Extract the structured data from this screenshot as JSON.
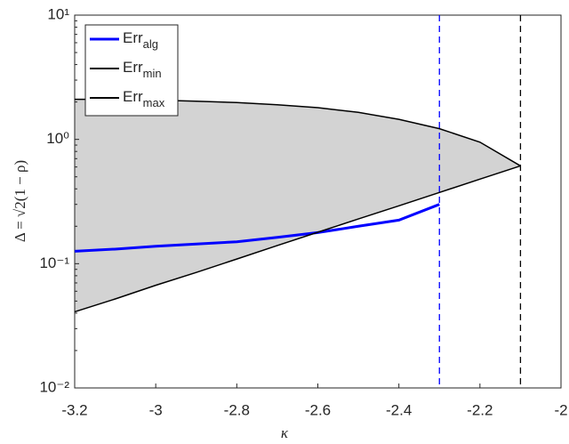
{
  "chart_data": {
    "type": "line",
    "log_y": true,
    "x_label": "κ",
    "y_label": "Δ = √2(1 − ρ)",
    "x": [
      -3.2,
      -3.1,
      -3.0,
      -2.9,
      -2.8,
      -2.7,
      -2.6,
      -2.5,
      -2.4,
      -2.3,
      -2.2,
      -2.1
    ],
    "series": [
      {
        "name": "Err",
        "subscript": "alg",
        "color": "#0000ff",
        "values": [
          0.126,
          0.131,
          0.138,
          0.144,
          0.15,
          0.163,
          0.178,
          0.2,
          0.224,
          0.3,
          null,
          null
        ]
      },
      {
        "name": "Err",
        "subscript": "min",
        "color": "#000000",
        "values": [
          0.041,
          0.052,
          0.067,
          0.085,
          0.109,
          0.14,
          0.179,
          0.229,
          0.292,
          0.374,
          0.479,
          0.612
        ]
      },
      {
        "name": "Err",
        "subscript": "max",
        "color": "#000000",
        "values": [
          2.1,
          2.1,
          2.07,
          2.03,
          1.98,
          1.9,
          1.8,
          1.65,
          1.45,
          1.22,
          0.95,
          0.612
        ]
      }
    ],
    "band_color": "#d3d3d3",
    "vlines": [
      {
        "x": -2.3,
        "color": "#0000ff"
      },
      {
        "x": -2.1,
        "color": "#000000"
      }
    ],
    "xlim": [
      -3.2,
      -2.0
    ],
    "xticks": [
      -3.2,
      -3,
      -2.8,
      -2.6,
      -2.4,
      -2.2,
      -2
    ],
    "ylim": [
      0.01,
      10
    ],
    "yticks": [
      {
        "value": 0.01,
        "label": "10⁻²"
      },
      {
        "value": 0.1,
        "label": "10⁻¹"
      },
      {
        "value": 1,
        "label": "10⁰"
      },
      {
        "value": 10,
        "label": "10¹"
      }
    ],
    "legend": "upper left"
  }
}
